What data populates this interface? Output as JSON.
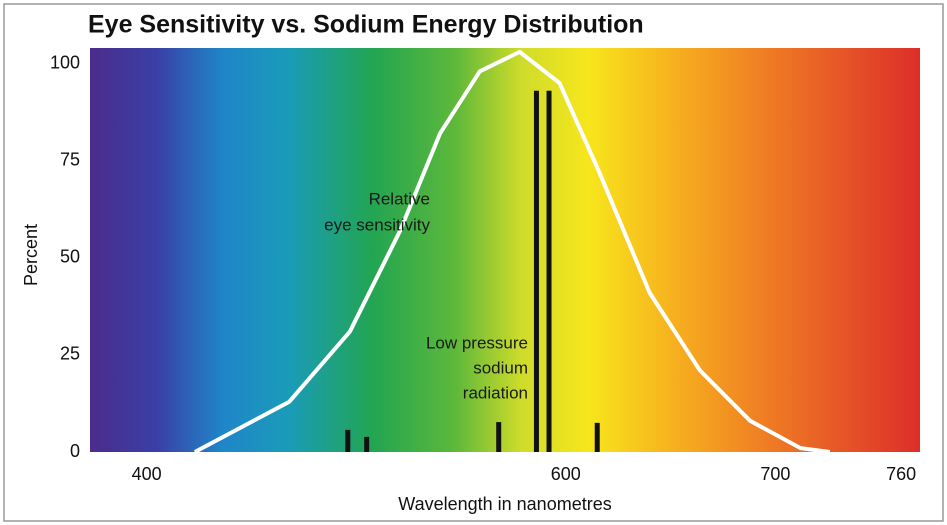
{
  "chart_data": {
    "type": "line",
    "title": "Eye Sensitivity vs. Sodium Energy Distribution",
    "x_label": "Wavelength in nanometres",
    "y_label": "Percent",
    "xlim": [
      373,
      769
    ],
    "ylim": [
      0,
      104
    ],
    "xticks": [
      400,
      600,
      700,
      760
    ],
    "yticks": [
      0,
      25,
      50,
      75,
      100
    ],
    "series": [
      {
        "type": "line",
        "color": "#ffffff",
        "x": [
          423,
          468,
          497,
          521,
          540,
          559,
          578,
          597,
          616,
          640,
          664,
          688,
          712,
          726
        ],
        "values": [
          0,
          12.9,
          31,
          57,
          82,
          98,
          103,
          95,
          72,
          41,
          21,
          8,
          1,
          0
        ]
      },
      {
        "type": "bar",
        "color": "#111111",
        "x": [
          496,
          505,
          568,
          586,
          592,
          615
        ],
        "values": [
          5.7,
          3.9,
          7.7,
          93,
          93,
          7.5
        ]
      }
    ],
    "annotations": [
      {
        "lines": [
          "Relative",
          "eye sensitivity"
        ]
      },
      {
        "lines": [
          "Low pressure",
          "sodium",
          "radiation"
        ]
      }
    ]
  }
}
